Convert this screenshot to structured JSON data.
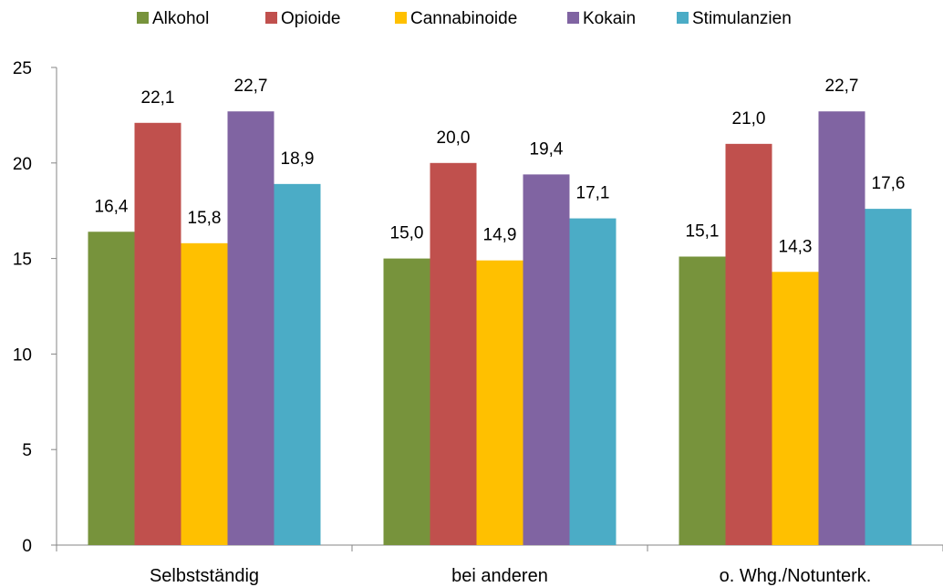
{
  "chart_data": {
    "type": "bar",
    "categories": [
      "Selbstständig",
      "bei anderen",
      "o. Whg./Notunterk."
    ],
    "series": [
      {
        "name": "Alkohol",
        "color": "#77933c",
        "values": [
          16.4,
          15.0,
          15.1
        ],
        "labels": [
          "16,4",
          "15,0",
          "15,1"
        ]
      },
      {
        "name": "Opioide",
        "color": "#c0504d",
        "values": [
          22.1,
          20.0,
          21.0
        ],
        "labels": [
          "22,1",
          "20,0",
          "21,0"
        ]
      },
      {
        "name": "Cannabinoide",
        "color": "#ffc000",
        "values": [
          15.8,
          14.9,
          14.3
        ],
        "labels": [
          "15,8",
          "14,9",
          "14,3"
        ]
      },
      {
        "name": "Kokain",
        "color": "#8064a2",
        "values": [
          22.7,
          19.4,
          22.7
        ],
        "labels": [
          "22,7",
          "19,4",
          "22,7"
        ]
      },
      {
        "name": "Stimulanzien",
        "color": "#4bacc6",
        "values": [
          18.9,
          17.1,
          17.6
        ],
        "labels": [
          "18,9",
          "17,1",
          "17,6"
        ]
      }
    ],
    "yticks": [
      "0",
      "5",
      "10",
      "15",
      "20",
      "25"
    ],
    "ylim": [
      0,
      25
    ],
    "grid": false,
    "legend": "top-center"
  }
}
